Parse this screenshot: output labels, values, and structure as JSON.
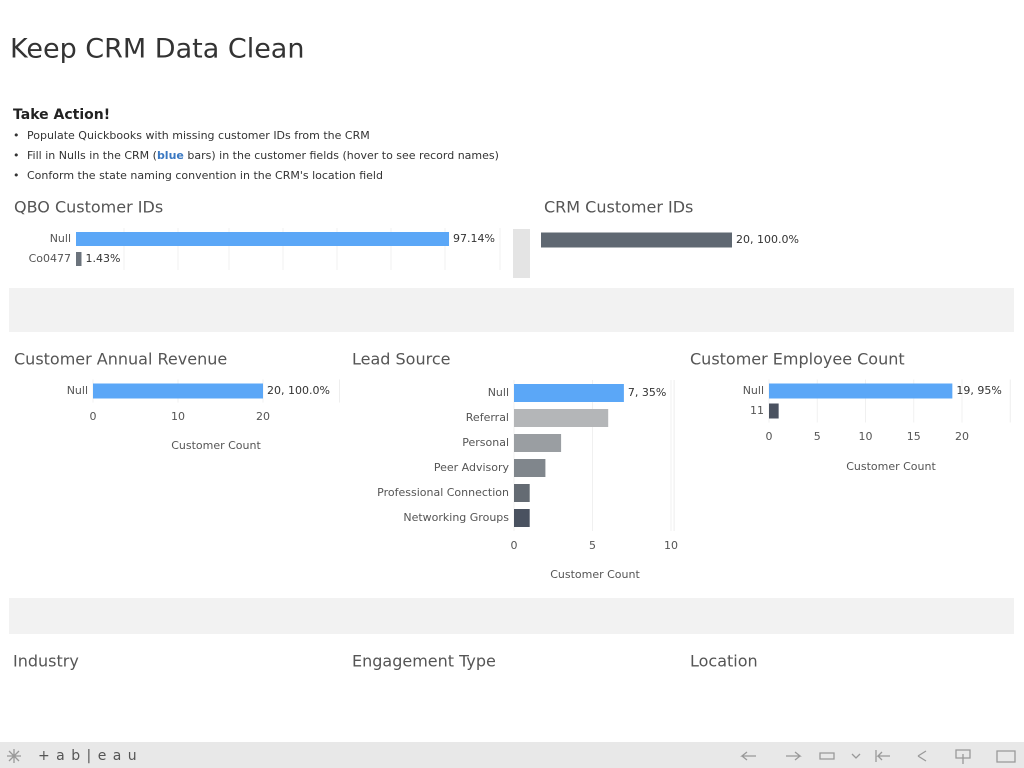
{
  "title": "Keep CRM Data Clean",
  "actions": {
    "heading": "Take Action!",
    "items": [
      [
        "Populate Quickbooks with missing customer IDs from the CRM"
      ],
      [
        "Fill in Nulls in the CRM (",
        "blue",
        " bars) in the customer fields (hover to see record names)"
      ],
      [
        "Conform the state naming convention in the CRM's location field"
      ]
    ]
  },
  "empty_panels": [
    "Industry",
    "Engagement Type",
    "Location"
  ],
  "footer": {
    "logo": "+ a b | e a u"
  },
  "chart_data": [
    {
      "type": "bar",
      "orientation": "horizontal",
      "title": "QBO Customer IDs",
      "categories": [
        "Null",
        "Co0477"
      ],
      "values": [
        97.14,
        1.43
      ],
      "value_labels": [
        "97.14%",
        "1.43%"
      ],
      "colors": [
        "#5ba7f7",
        "#6b737c"
      ]
    },
    {
      "type": "bar",
      "orientation": "horizontal",
      "title": "CRM Customer IDs",
      "categories": [
        null
      ],
      "values": [
        20
      ],
      "value_labels": [
        "20, 100.0%"
      ],
      "colors": [
        "#5f6872"
      ]
    },
    {
      "type": "bar",
      "orientation": "horizontal",
      "title": "Customer Annual Revenue",
      "categories": [
        "Null"
      ],
      "values": [
        20
      ],
      "value_labels": [
        "20, 100.0%"
      ],
      "colors": [
        "#5ba7f7"
      ],
      "xlim": [
        0,
        29
      ],
      "xticks": [
        0,
        10,
        20
      ],
      "xlabel": "Customer Count"
    },
    {
      "type": "bar",
      "orientation": "horizontal",
      "title": "Lead Source",
      "categories": [
        "Null",
        "Referral",
        "Personal",
        "Peer Advisory",
        "Professional Connection",
        "Networking Groups"
      ],
      "values": [
        7,
        6,
        3,
        2,
        1,
        1
      ],
      "value_labels": [
        "7, 35%",
        null,
        null,
        null,
        null,
        null
      ],
      "colors": [
        "#5ba7f7",
        "#b4b6b8",
        "#9a9ea2",
        "#80868c",
        "#646b73",
        "#4a5260"
      ],
      "xlim": [
        0,
        10.2
      ],
      "xticks": [
        0,
        5,
        10
      ],
      "xlabel": "Customer Count"
    },
    {
      "type": "bar",
      "orientation": "horizontal",
      "title": "Customer Employee Count",
      "categories": [
        "Null",
        "11"
      ],
      "values": [
        19,
        1
      ],
      "value_labels": [
        "19, 95%",
        null
      ],
      "colors": [
        "#5ba7f7",
        "#4a5260"
      ],
      "xlim": [
        0,
        25
      ],
      "xticks": [
        0,
        5,
        10,
        15,
        20
      ],
      "xlabel": "Customer Count"
    }
  ]
}
